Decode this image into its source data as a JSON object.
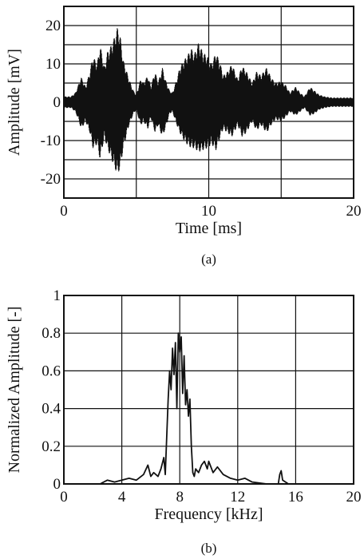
{
  "chart_data": [
    {
      "type": "line",
      "caption": "(a)",
      "xlabel": "Time [ms]",
      "ylabel": "Amplitude [mV]",
      "xlim": [
        0,
        20
      ],
      "ylim": [
        -25,
        25
      ],
      "grid": true,
      "x_ticks": [
        "0",
        "10",
        "20"
      ],
      "y_ticks": [
        "20",
        "10",
        "0",
        "-10",
        "-20"
      ],
      "envelope": {
        "name": "",
        "x": [
          0.0,
          0.5,
          0.8,
          1.0,
          1.2,
          1.5,
          1.8,
          2.0,
          2.3,
          2.5,
          2.8,
          3.0,
          3.3,
          3.5,
          3.7,
          3.9,
          4.1,
          4.3,
          4.5,
          4.8,
          5.0,
          5.3,
          5.5,
          5.8,
          6.0,
          6.3,
          6.5,
          6.8,
          7.0,
          7.3,
          7.5,
          7.8,
          8.0,
          8.3,
          8.5,
          8.8,
          9.0,
          9.3,
          9.6,
          9.9,
          10.2,
          10.5,
          10.8,
          11.0,
          11.3,
          11.6,
          12.0,
          12.3,
          12.6,
          13.0,
          13.3,
          13.6,
          14.0,
          14.3,
          14.6,
          15.0,
          15.3,
          15.6,
          16.0,
          16.3,
          16.6,
          17.0,
          17.3,
          17.6,
          18.0,
          18.5,
          19.0,
          19.5,
          20.0
        ],
        "upper": [
          1.5,
          1.5,
          2.5,
          4.5,
          6.5,
          4.0,
          8.0,
          12.0,
          10.0,
          15.0,
          9.0,
          13.0,
          15.0,
          17.0,
          19.5,
          17.0,
          11.0,
          8.5,
          6.0,
          3.0,
          2.0,
          6.0,
          5.0,
          7.0,
          4.0,
          8.0,
          5.0,
          9.0,
          6.0,
          3.0,
          2.5,
          6.0,
          9.0,
          11.0,
          12.0,
          14.0,
          12.5,
          15.5,
          13.0,
          12.0,
          10.0,
          13.0,
          10.0,
          7.0,
          8.0,
          10.0,
          6.0,
          9.5,
          8.0,
          5.0,
          8.0,
          7.0,
          9.0,
          6.5,
          5.0,
          5.5,
          4.5,
          2.5,
          4.0,
          2.5,
          1.5,
          4.0,
          3.0,
          2.0,
          1.5,
          1.2,
          1.2,
          1.2,
          1.2
        ],
        "lower": [
          -1.5,
          -1.5,
          -2.5,
          -4.5,
          -7.0,
          -5.0,
          -8.0,
          -12.0,
          -11.0,
          -15.0,
          -9.0,
          -12.0,
          -15.0,
          -17.0,
          -19.0,
          -17.0,
          -12.0,
          -9.0,
          -6.0,
          -3.0,
          -2.0,
          -6.0,
          -5.0,
          -7.0,
          -4.0,
          -8.0,
          -6.0,
          -9.0,
          -7.0,
          -3.0,
          -2.5,
          -6.0,
          -8.0,
          -10.0,
          -11.0,
          -12.0,
          -12.0,
          -13.0,
          -12.5,
          -12.0,
          -11.0,
          -12.5,
          -9.0,
          -7.0,
          -8.0,
          -9.0,
          -6.0,
          -9.0,
          -8.0,
          -5.0,
          -7.5,
          -6.0,
          -8.0,
          -6.0,
          -4.5,
          -5.0,
          -4.0,
          -2.5,
          -3.5,
          -2.5,
          -1.5,
          -3.5,
          -3.0,
          -2.0,
          -1.5,
          -1.2,
          -1.2,
          -1.2,
          -1.2
        ]
      }
    },
    {
      "type": "line",
      "caption": "(b)",
      "xlabel": "Frequency [kHz]",
      "ylabel": "Normalized Amplitude [-]",
      "xlim": [
        0,
        20
      ],
      "ylim": [
        0,
        1
      ],
      "grid": true,
      "x_ticks": [
        "0",
        "4",
        "8",
        "12",
        "16",
        "20"
      ],
      "y_ticks": [
        "1",
        "0.8",
        "0.6",
        "0.4",
        "0.2",
        "0"
      ],
      "series": [
        {
          "name": "",
          "x": [
            0.0,
            2.5,
            3.0,
            3.5,
            4.0,
            4.5,
            5.0,
            5.5,
            5.8,
            6.0,
            6.2,
            6.5,
            6.7,
            6.9,
            7.0,
            7.1,
            7.2,
            7.3,
            7.4,
            7.5,
            7.6,
            7.7,
            7.8,
            7.9,
            8.0,
            8.1,
            8.2,
            8.3,
            8.4,
            8.5,
            8.6,
            8.7,
            8.8,
            8.9,
            9.0,
            9.1,
            9.3,
            9.5,
            9.7,
            9.9,
            10.0,
            10.3,
            10.6,
            11.0,
            11.5,
            12.0,
            12.5,
            13.0,
            14.0,
            14.8,
            14.9,
            15.0,
            15.1,
            15.5,
            16.0,
            18.0,
            20.0
          ],
          "y": [
            0.0,
            0.0,
            0.02,
            0.01,
            0.02,
            0.03,
            0.02,
            0.05,
            0.1,
            0.04,
            0.06,
            0.04,
            0.08,
            0.14,
            0.05,
            0.25,
            0.45,
            0.6,
            0.5,
            0.72,
            0.58,
            0.75,
            0.4,
            0.8,
            0.7,
            0.78,
            0.48,
            0.68,
            0.42,
            0.5,
            0.36,
            0.45,
            0.2,
            0.06,
            0.04,
            0.08,
            0.06,
            0.1,
            0.12,
            0.08,
            0.12,
            0.06,
            0.09,
            0.05,
            0.03,
            0.02,
            0.03,
            0.01,
            0.0,
            0.0,
            0.05,
            0.07,
            0.02,
            0.0,
            0.0,
            0.0,
            0.0
          ]
        }
      ]
    }
  ]
}
